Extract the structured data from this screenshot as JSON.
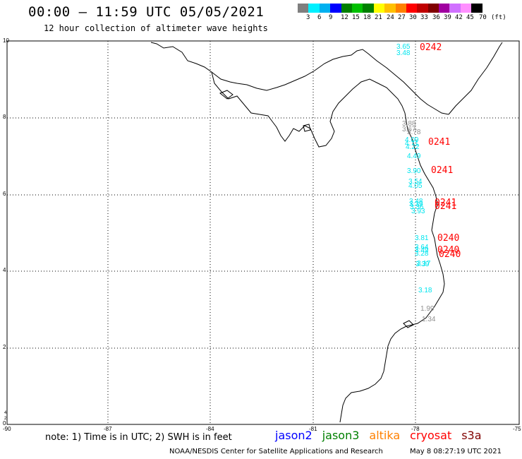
{
  "header": {
    "title": "00:00 – 11:59 UTC 05/05/2021",
    "subtitle": "12 hour collection of altimeter wave heights"
  },
  "colorbar": {
    "colors": [
      "#7f7f7f",
      "#00f0ff",
      "#00b0f0",
      "#0000ff",
      "#007f00",
      "#00c000",
      "#008000",
      "#ffff00",
      "#ffc000",
      "#ff8000",
      "#ff0000",
      "#c00000",
      "#800000",
      "#a000a0",
      "#d070ff",
      "#ff90ff",
      "#000000"
    ],
    "labels": [
      "3",
      "6",
      "9",
      "12",
      "15",
      "18",
      "21",
      "24",
      "27",
      "30",
      "33",
      "36",
      "39",
      "42",
      "45",
      "70",
      "(ft)"
    ]
  },
  "axes": {
    "lon_labels": [
      "-90",
      "-87",
      "-84",
      "-81",
      "-78",
      "-75"
    ],
    "lat_labels": [
      "10",
      "8",
      "6",
      "4",
      "2",
      "0"
    ],
    "extra_lat_labels": [
      "4",
      "2"
    ]
  },
  "observations": [
    {
      "value": "3.65",
      "color": "#00e5ee"
    },
    {
      "value": "3.48",
      "color": "#00e5ee"
    },
    {
      "value": "3.88",
      "color": "#909090"
    },
    {
      "value": "3.67",
      "color": "#909090"
    },
    {
      "value": "3.78",
      "color": "#909090"
    },
    {
      "value": "4.09",
      "color": "#00e5ee"
    },
    {
      "value": "4.71",
      "color": "#00e5ee"
    },
    {
      "value": "4.22",
      "color": "#00e5ee"
    },
    {
      "value": "4.49",
      "color": "#00e5ee"
    },
    {
      "value": "3.90",
      "color": "#00e5ee"
    },
    {
      "value": "3.54",
      "color": "#00e5ee"
    },
    {
      "value": "4.05",
      "color": "#00e5ee"
    },
    {
      "value": "3.48",
      "color": "#00e5ee"
    },
    {
      "value": "3.39",
      "color": "#00e5ee"
    },
    {
      "value": "3.36",
      "color": "#00e5ee"
    },
    {
      "value": "3.93",
      "color": "#00e5ee"
    },
    {
      "value": "3.81",
      "color": "#00e5ee"
    },
    {
      "value": "3.64",
      "color": "#00e5ee"
    },
    {
      "value": "3.49",
      "color": "#00e5ee"
    },
    {
      "value": "3.28",
      "color": "#00e5ee"
    },
    {
      "value": "3.39",
      "color": "#00e5ee"
    },
    {
      "value": "3.17",
      "color": "#00e5ee"
    },
    {
      "value": "3.18",
      "color": "#00e5ee"
    },
    {
      "value": "1.99",
      "color": "#909090"
    },
    {
      "value": "1.34",
      "color": "#909090"
    }
  ],
  "time_labels": [
    "0242",
    "0241",
    "0241",
    "0241",
    "0241",
    "0240",
    "0240",
    "0240"
  ],
  "footer": {
    "note": "note: 1) Time is in UTC; 2) SWH is in feet",
    "satellites": [
      {
        "name": "jason2",
        "color": "#0000ff"
      },
      {
        "name": "jason3",
        "color": "#008000"
      },
      {
        "name": "altika",
        "color": "#ff8000"
      },
      {
        "name": "cryosat",
        "color": "#ff0000"
      },
      {
        "name": "s3a",
        "color": "#800000"
      }
    ],
    "credit": "NOAA/NESDIS Center for Satellite Applications and Research",
    "timestamp": "May  8 08:27:19 UTC 2021"
  }
}
